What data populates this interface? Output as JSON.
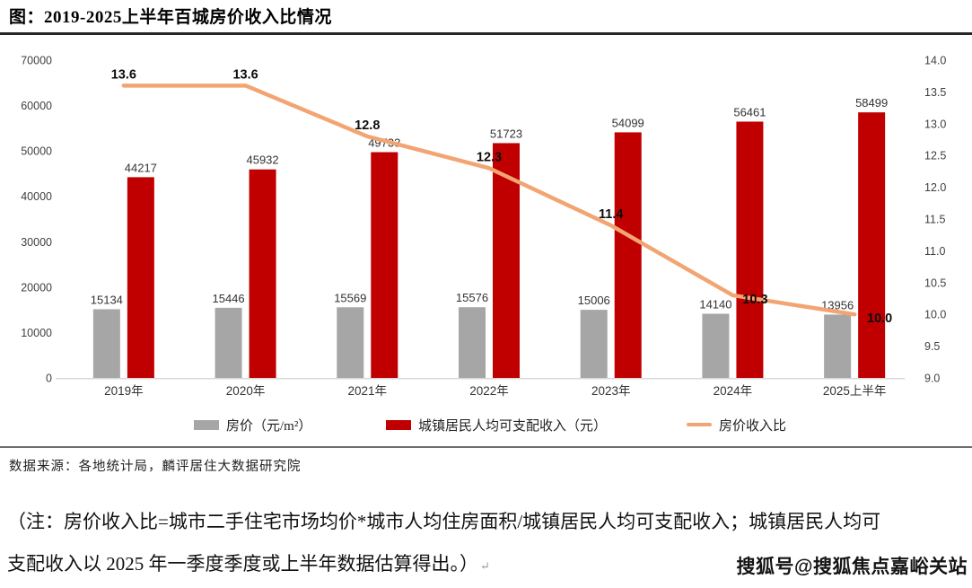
{
  "title": "图：2019-2025上半年百城房价收入比情况",
  "source": "数据来源：各地统计局，麟评居住大数据研究院",
  "note": {
    "line1": "（注：房价收入比=城市二手住宅市场均价*城市人均住房面积/城镇居民人均可支配收入；城镇居民人均可",
    "line2": "支配收入以 2025 年一季度季度或上半年数据估算得出。）",
    "return_mark": "↵"
  },
  "watermark": "搜狐号@搜狐焦点嘉峪关站",
  "colors": {
    "bar_gray": "#A6A6A6",
    "bar_red": "#C00000",
    "line_orange": "#F2A572",
    "axis_line": "#D9D9D9",
    "divider_dark": "#262626"
  },
  "chart_data": {
    "type": "combo",
    "title": "2019-2025上半年百城房价收入比情况",
    "categories": [
      "2019年",
      "2020年",
      "2021年",
      "2022年",
      "2023年",
      "2024年",
      "2025上半年"
    ],
    "series": [
      {
        "name": "房价（元/m²）",
        "type": "bar",
        "axis": "left",
        "color": "#A6A6A6",
        "values": [
          15134,
          15446,
          15569,
          15576,
          15006,
          14140,
          13956
        ]
      },
      {
        "name": "城镇居民人均可支配收入（元）",
        "type": "bar",
        "axis": "left",
        "color": "#C00000",
        "values": [
          44217,
          45932,
          49733,
          51723,
          54099,
          56461,
          58499
        ]
      },
      {
        "name": "房价收入比",
        "type": "line",
        "axis": "right",
        "color": "#F2A572",
        "values": [
          13.6,
          13.6,
          12.8,
          12.3,
          11.4,
          10.3,
          10.0
        ]
      }
    ],
    "left_axis": {
      "min": 0,
      "max": 70000,
      "step": 10000
    },
    "right_axis": {
      "min": 9.0,
      "max": 14.0,
      "step": 0.5
    },
    "grid": false,
    "legend_position": "bottom"
  }
}
